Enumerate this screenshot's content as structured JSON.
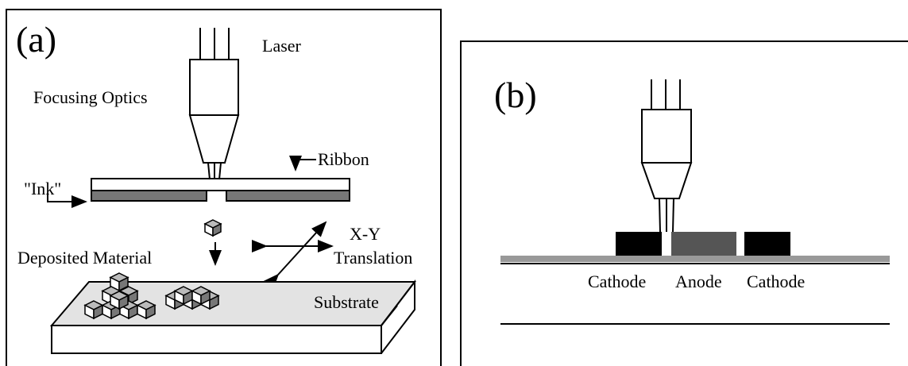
{
  "panel_a": {
    "label": "(a)",
    "laser": "Laser",
    "focusing_optics": "Focusing Optics",
    "ribbon": "Ribbon",
    "ink": "\"Ink\"",
    "deposited_material": "Deposited Material",
    "translation": [
      "X-Y",
      "Translation"
    ],
    "substrate": "Substrate"
  },
  "panel_b": {
    "label": "(b)",
    "electrodes": [
      "Cathode",
      "Anode",
      "Cathode"
    ]
  }
}
